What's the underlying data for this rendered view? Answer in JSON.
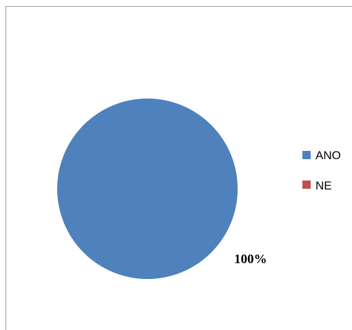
{
  "chart_data": {
    "type": "pie",
    "categories": [
      "ANO",
      "NE"
    ],
    "values": [
      100,
      0
    ],
    "colors": [
      "#4f81bd",
      "#c0504d"
    ],
    "data_labels": [
      "100%"
    ],
    "legend_position": "right",
    "legend": [
      {
        "label": "ANO",
        "color": "#4f81bd"
      },
      {
        "label": "NE",
        "color": "#c0504d"
      }
    ]
  }
}
